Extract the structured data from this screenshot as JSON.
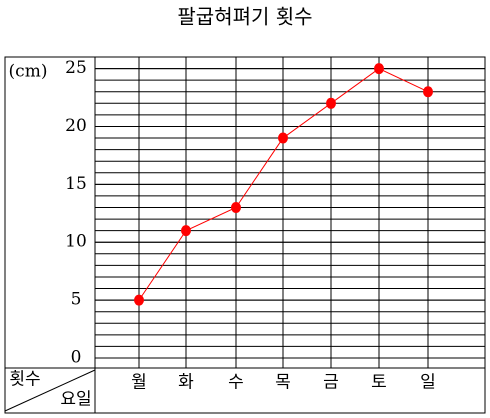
{
  "chart_data": {
    "type": "line",
    "title": "팔굽혀펴기 횟수",
    "y_label": "(cm)",
    "corner_top": "횟수",
    "corner_bottom": "요일",
    "categories": [
      "월",
      "화",
      "수",
      "목",
      "금",
      "토",
      "일"
    ],
    "series": [
      {
        "name": "횟수",
        "color": "#ff0000",
        "values": [
          5,
          11,
          13,
          19,
          22,
          25,
          23
        ]
      }
    ],
    "ylim": [
      0,
      26
    ],
    "yticks": [
      0,
      5,
      10,
      15,
      20,
      25
    ],
    "grid": true
  }
}
